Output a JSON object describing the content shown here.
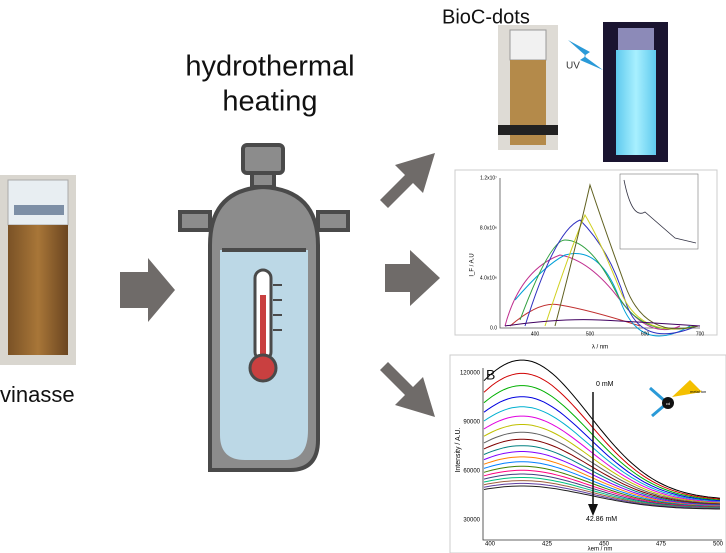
{
  "labels": {
    "product": "BioC-dots",
    "uv": "UV",
    "process": [
      "hydrothermal",
      "heating"
    ],
    "source": "vinasse"
  },
  "plot_a": {
    "y_axis": "I_F / A.U",
    "x_axis": "λ / nm",
    "yticks": [
      "0.0",
      "4.0x10⁶",
      "8.0x10⁶",
      "1.2x10⁷"
    ],
    "xticks": [
      "400",
      "500",
      "600",
      "700"
    ]
  },
  "plot_b": {
    "panel": "B",
    "y_axis": "Intensity / A.U.",
    "x_axis": "λem / nm",
    "yticks": [
      "30000",
      "60000",
      "90000",
      "120000"
    ],
    "xticks": [
      "400",
      "425",
      "450",
      "475",
      "500"
    ],
    "start": "0 mM",
    "end": "42.86 mM",
    "icon_label": "metal ion",
    "icon_center": "cd"
  }
}
